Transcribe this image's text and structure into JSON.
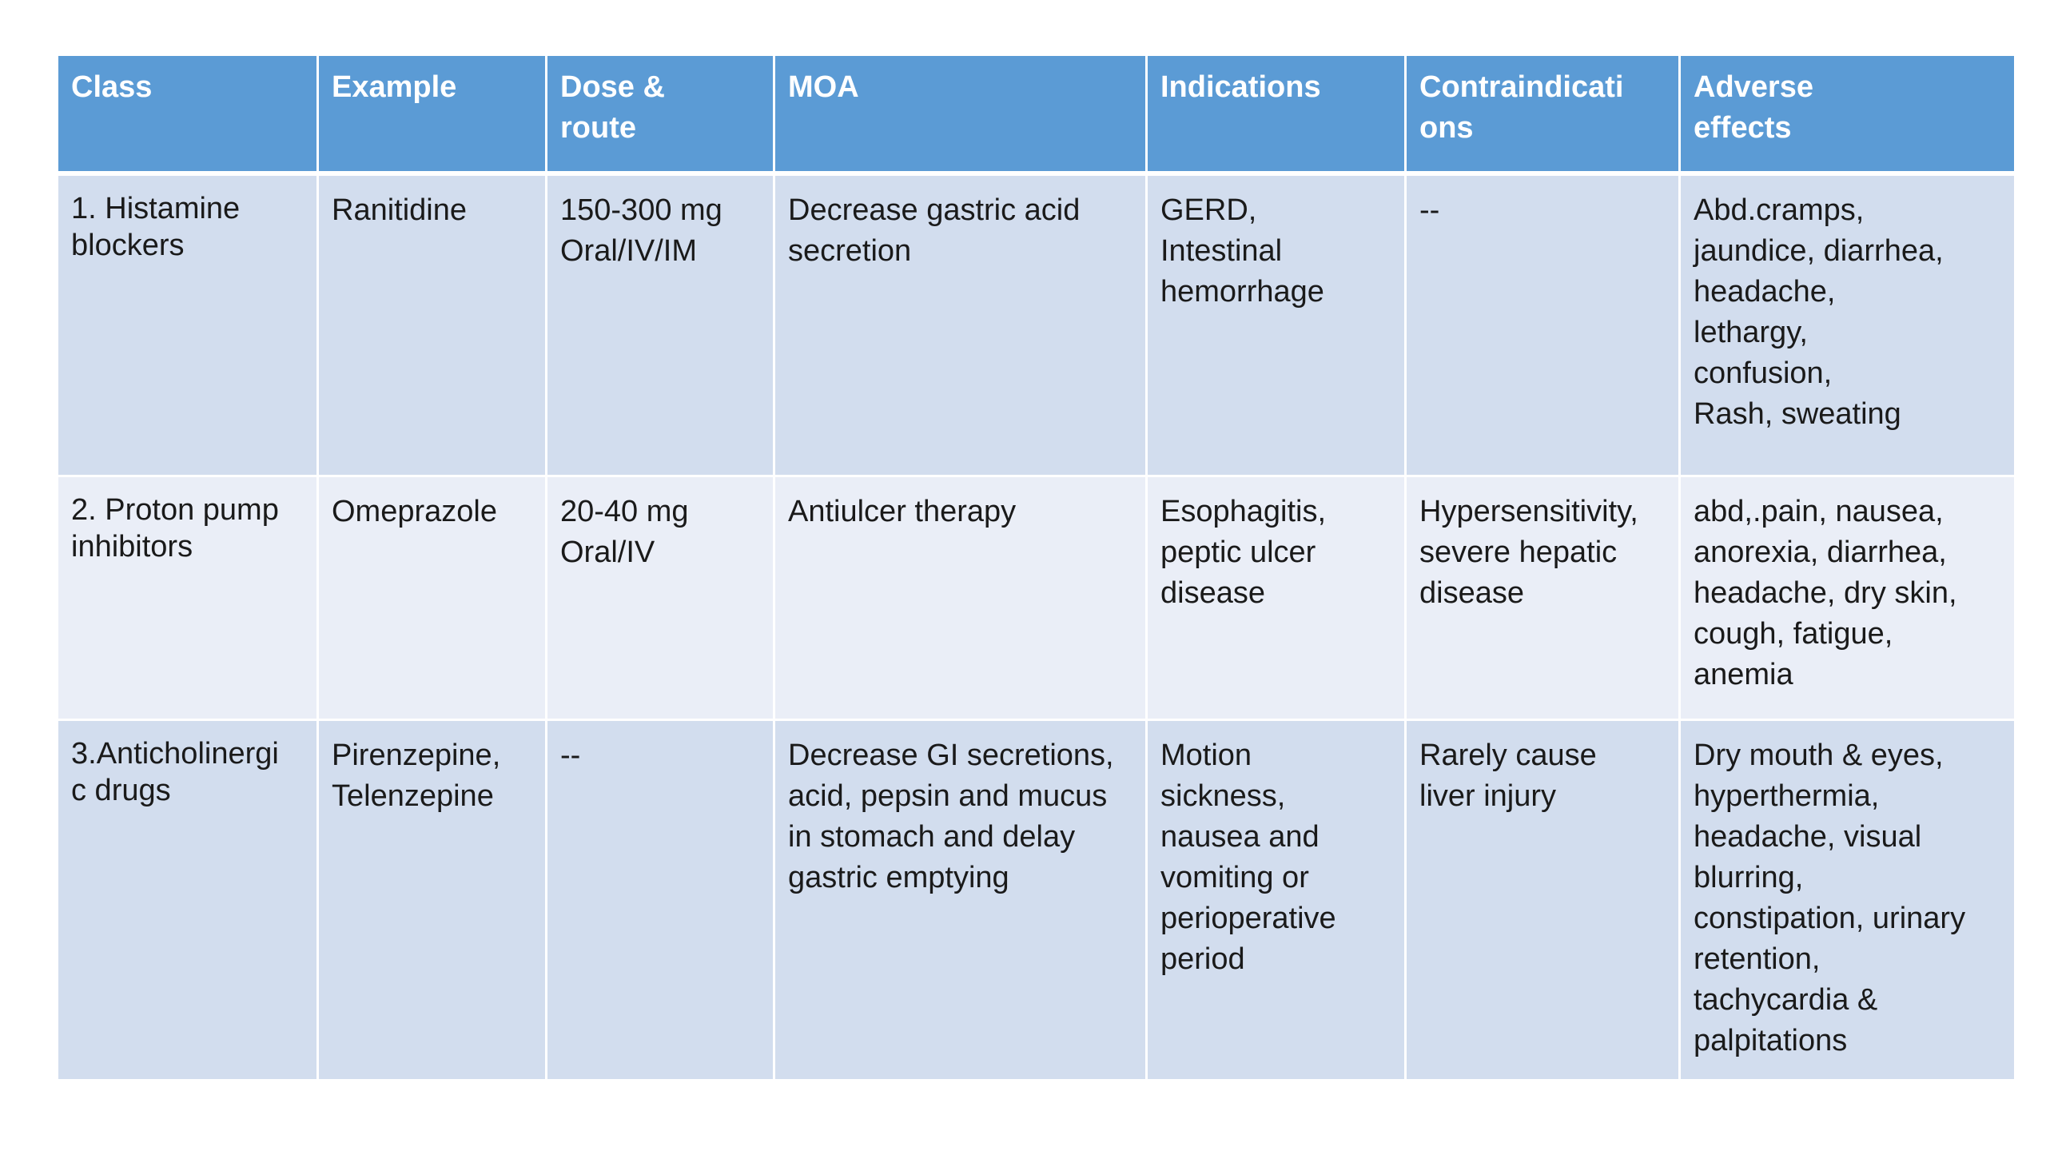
{
  "table": {
    "headers": [
      "Class",
      "Example",
      "Dose & route",
      "MOA",
      "Indications",
      "Contraindicati ons",
      "Adverse effects"
    ],
    "header_display": [
      "Class",
      "Example",
      "Dose &\nroute",
      "MOA",
      "Indications",
      "Contraindicati\nons",
      "Adverse\neffects"
    ],
    "rows": [
      {
        "class": "1. Histamine\nblockers",
        "example": "Ranitidine",
        "dose_route": "150-300 mg\nOral/IV/IM",
        "moa": "Decrease gastric acid\nsecretion",
        "indications": "GERD,\nIntestinal\nhemorrhage",
        "contraindications": "--",
        "adverse_effects": "Abd.cramps,\njaundice, diarrhea,\nheadache,\nlethargy,\nconfusion,\nRash, sweating"
      },
      {
        "class": "2. Proton pump\ninhibitors",
        "example": "Omeprazole",
        "dose_route": "20-40 mg\nOral/IV",
        "moa": "Antiulcer therapy",
        "indications": "Esophagitis,\npeptic ulcer\ndisease",
        "contraindications": "Hypersensitivity,\nsevere hepatic\ndisease",
        "adverse_effects": "abd,.pain, nausea,\nanorexia, diarrhea,\nheadache, dry skin,\ncough, fatigue,\nanemia"
      },
      {
        "class": "3.Anticholinergi\nc drugs",
        "example": "Pirenzepine,\nTelenzepine",
        "dose_route": "--",
        "moa": "Decrease GI secretions,\nacid, pepsin and mucus\nin stomach and delay\ngastric emptying",
        "indications": "Motion\nsickness,\nnausea and\nvomiting or\nperioperative\nperiod",
        "contraindications": "Rarely cause\nliver injury",
        "adverse_effects": "Dry mouth & eyes,\nhyperthermia,\nheadache, visual\nblurring,\nconstipation, urinary\nretention,\ntachycardia &\npalpitations"
      }
    ]
  },
  "colors": {
    "header_bg": "#5b9bd5",
    "row_band_dark": "#d2ddee",
    "row_band_light": "#eaeef7"
  }
}
